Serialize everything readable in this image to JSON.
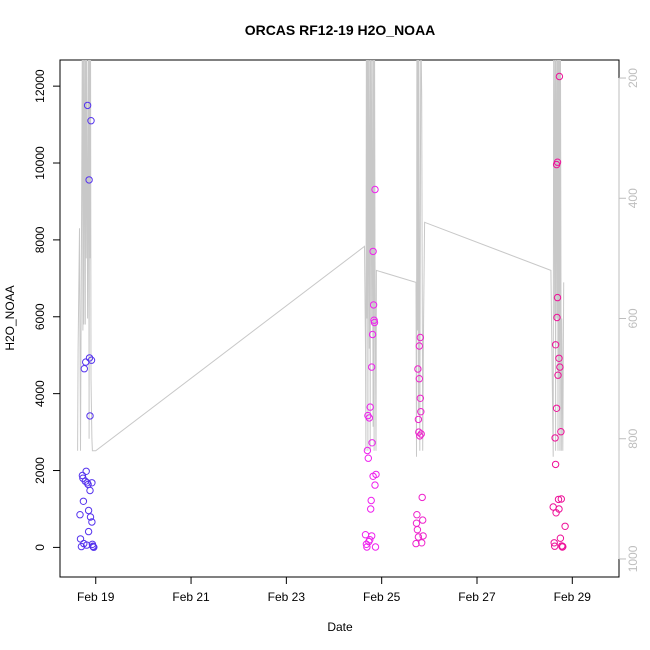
{
  "chart_data": {
    "type": "scatter",
    "title": "ORCAS RF12-19 H2O_NOAA",
    "xlabel": "Date",
    "ylabel": "H2O_NOAA",
    "x_unit": "days",
    "x_ticks": [
      {
        "label": "Feb 19",
        "value": 0
      },
      {
        "label": "Feb 21",
        "value": 2
      },
      {
        "label": "Feb 23",
        "value": 4
      },
      {
        "label": "Feb 25",
        "value": 6
      },
      {
        "label": "Feb 27",
        "value": 8
      },
      {
        "label": "Feb 29",
        "value": 10
      }
    ],
    "xlim": [
      -0.75,
      10.98
    ],
    "ylim": [
      -770,
      12680
    ],
    "y_ticks": [
      0,
      2000,
      4000,
      6000,
      8000,
      10000,
      12000
    ],
    "right_axis": {
      "ticks": [
        200,
        400,
        600,
        800,
        1000
      ],
      "ylim": [
        1030,
        170
      ],
      "color": "#bebebe"
    },
    "grid": false,
    "colors": {
      "flight1": "#5533ee",
      "flight2": "#ee22ee",
      "flight3": "#ee22cc",
      "flight4": "#ee1199",
      "pressure": "#c8c8c8"
    },
    "series": [
      {
        "color": "#5533ee",
        "points": [
          [
            -0.33,
            850
          ],
          [
            -0.32,
            220
          ],
          [
            -0.3,
            20
          ],
          [
            -0.28,
            1870
          ],
          [
            -0.27,
            1800
          ],
          [
            -0.26,
            1200
          ],
          [
            -0.25,
            100
          ],
          [
            -0.24,
            4650
          ],
          [
            -0.22,
            1720
          ],
          [
            -0.21,
            4820
          ],
          [
            -0.2,
            1980
          ],
          [
            -0.19,
            60
          ],
          [
            -0.18,
            1680
          ],
          [
            -0.17,
            11500
          ],
          [
            -0.16,
            1640
          ],
          [
            -0.15,
            410
          ],
          [
            -0.15,
            960
          ],
          [
            -0.14,
            9560
          ],
          [
            -0.13,
            4930
          ],
          [
            -0.12,
            3420
          ],
          [
            -0.12,
            1480
          ],
          [
            -0.11,
            790
          ],
          [
            -0.1,
            11100
          ],
          [
            -0.09,
            4870
          ],
          [
            -0.08,
            1680
          ],
          [
            -0.08,
            660
          ],
          [
            -0.07,
            80
          ],
          [
            -0.06,
            30
          ],
          [
            -0.05,
            10
          ],
          [
            -0.04,
            5
          ]
        ]
      },
      {
        "color": "#ee22ee",
        "points": [
          [
            5.66,
            330
          ],
          [
            5.68,
            80
          ],
          [
            5.69,
            10
          ],
          [
            5.7,
            2520
          ],
          [
            5.71,
            3430
          ],
          [
            5.72,
            2320
          ],
          [
            5.73,
            150
          ],
          [
            5.74,
            3370
          ],
          [
            5.75,
            200
          ],
          [
            5.76,
            3650
          ],
          [
            5.77,
            1000
          ],
          [
            5.78,
            1220
          ],
          [
            5.79,
            4690
          ],
          [
            5.79,
            300
          ],
          [
            5.8,
            2720
          ],
          [
            5.81,
            5540
          ],
          [
            5.82,
            1850
          ],
          [
            5.82,
            7700
          ],
          [
            5.83,
            6310
          ],
          [
            5.84,
            5910
          ],
          [
            5.85,
            5850
          ],
          [
            5.86,
            1620
          ],
          [
            5.86,
            9310
          ],
          [
            5.87,
            10
          ],
          [
            5.88,
            1900
          ]
        ]
      },
      {
        "color": "#ee22cc",
        "points": [
          [
            6.72,
            100
          ],
          [
            6.73,
            630
          ],
          [
            6.74,
            850
          ],
          [
            6.75,
            460
          ],
          [
            6.76,
            4640
          ],
          [
            6.77,
            3330
          ],
          [
            6.77,
            270
          ],
          [
            6.78,
            3000
          ],
          [
            6.79,
            4390
          ],
          [
            6.79,
            5240
          ],
          [
            6.8,
            2900
          ],
          [
            6.81,
            3880
          ],
          [
            6.81,
            5460
          ],
          [
            6.82,
            3530
          ],
          [
            6.83,
            2950
          ],
          [
            6.84,
            120
          ],
          [
            6.85,
            1300
          ],
          [
            6.86,
            710
          ],
          [
            6.87,
            300
          ]
        ]
      },
      {
        "color": "#ee1199",
        "points": [
          [
            9.6,
            1050
          ],
          [
            9.62,
            120
          ],
          [
            9.63,
            30
          ],
          [
            9.64,
            2850
          ],
          [
            9.65,
            5270
          ],
          [
            9.65,
            2160
          ],
          [
            9.66,
            900
          ],
          [
            9.67,
            3620
          ],
          [
            9.67,
            9960
          ],
          [
            9.68,
            5980
          ],
          [
            9.69,
            6500
          ],
          [
            9.69,
            10020
          ],
          [
            9.7,
            4480
          ],
          [
            9.71,
            1250
          ],
          [
            9.72,
            1000
          ],
          [
            9.72,
            4920
          ],
          [
            9.73,
            12250
          ],
          [
            9.74,
            4690
          ],
          [
            9.75,
            240
          ],
          [
            9.76,
            3010
          ],
          [
            9.77,
            1260
          ],
          [
            9.78,
            40
          ],
          [
            9.79,
            10
          ],
          [
            9.8,
            20
          ],
          [
            9.85,
            550
          ]
        ]
      }
    ],
    "pressure_trace": [
      [
        -0.38,
        820
      ],
      [
        -0.37,
        650
      ],
      [
        -0.34,
        450
      ],
      [
        -0.32,
        820
      ],
      [
        -0.3,
        500
      ],
      [
        -0.28,
        100
      ],
      [
        -0.27,
        620
      ],
      [
        -0.26,
        100
      ],
      [
        -0.25,
        610
      ],
      [
        -0.23,
        100
      ],
      [
        -0.22,
        610
      ],
      [
        -0.21,
        100
      ],
      [
        -0.2,
        500
      ],
      [
        -0.19,
        100
      ],
      [
        -0.17,
        600
      ],
      [
        -0.15,
        100
      ],
      [
        -0.14,
        800
      ],
      [
        -0.13,
        100
      ],
      [
        -0.12,
        500
      ],
      [
        -0.11,
        100
      ],
      [
        -0.1,
        700
      ],
      [
        -0.08,
        800
      ],
      [
        -0.07,
        820
      ],
      [
        0.0,
        820
      ],
      [
        5.64,
        480
      ],
      [
        5.66,
        650
      ],
      [
        5.67,
        820
      ],
      [
        5.68,
        100
      ],
      [
        5.69,
        600
      ],
      [
        5.7,
        100
      ],
      [
        5.71,
        820
      ],
      [
        5.72,
        100
      ],
      [
        5.74,
        650
      ],
      [
        5.75,
        100
      ],
      [
        5.76,
        820
      ],
      [
        5.77,
        100
      ],
      [
        5.79,
        600
      ],
      [
        5.8,
        100
      ],
      [
        5.82,
        780
      ],
      [
        5.83,
        100
      ],
      [
        5.84,
        820
      ],
      [
        5.85,
        100
      ],
      [
        5.86,
        500
      ],
      [
        5.88,
        820
      ],
      [
        5.89,
        520
      ],
      [
        6.72,
        540
      ],
      [
        6.73,
        830
      ],
      [
        6.74,
        100
      ],
      [
        6.75,
        620
      ],
      [
        6.76,
        100
      ],
      [
        6.77,
        760
      ],
      [
        6.78,
        100
      ],
      [
        6.79,
        480
      ],
      [
        6.8,
        820
      ],
      [
        6.82,
        100
      ],
      [
        6.84,
        230
      ],
      [
        6.86,
        820
      ],
      [
        6.88,
        600
      ],
      [
        6.9,
        440
      ],
      [
        9.55,
        520
      ],
      [
        9.6,
        830
      ],
      [
        9.61,
        100
      ],
      [
        9.63,
        600
      ],
      [
        9.64,
        100
      ],
      [
        9.65,
        820
      ],
      [
        9.66,
        100
      ],
      [
        9.68,
        600
      ],
      [
        9.69,
        100
      ],
      [
        9.7,
        820
      ],
      [
        9.71,
        100
      ],
      [
        9.72,
        700
      ],
      [
        9.73,
        100
      ],
      [
        9.74,
        820
      ],
      [
        9.75,
        100
      ],
      [
        9.77,
        820
      ],
      [
        9.78,
        600
      ],
      [
        9.8,
        820
      ],
      [
        9.82,
        540
      ]
    ]
  }
}
